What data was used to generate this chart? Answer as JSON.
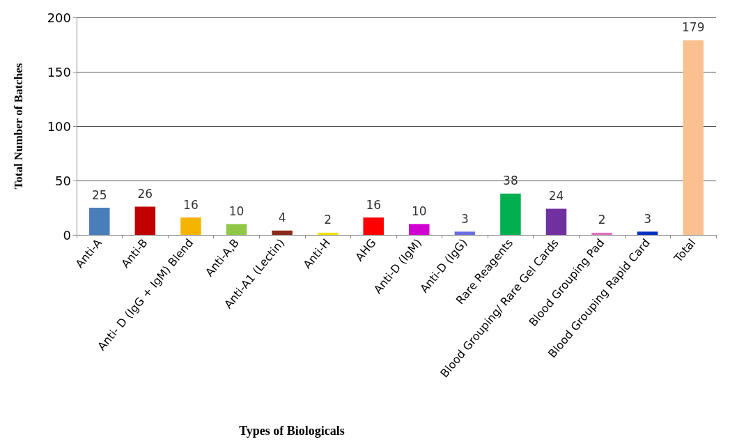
{
  "chart_data": {
    "type": "bar",
    "xlabel": "Types of Biologicals",
    "ylabel": "Total Number of Batches",
    "categories": [
      "Anti-A",
      "Anti-B",
      "Anti- D (IgG + IgM) Blend",
      "Anti-A,B",
      "Anti-A1 (Lectin)",
      "Anti-H",
      "AHG",
      "Anti-D (IgM)",
      "Anti-D (IgG)",
      "Rare Reagents",
      "Blood Grouping/ Rare Gel Cards",
      "Blood Grouping Pad",
      "Blood Grouping Rapid Card",
      "Total"
    ],
    "values": [
      25,
      26,
      16,
      10,
      4,
      2,
      16,
      10,
      3,
      38,
      24,
      2,
      3,
      179
    ],
    "colors": [
      "#4a7ebb",
      "#c00000",
      "#f5b400",
      "#8fc846",
      "#8b2a1a",
      "#f0e000",
      "#ff0000",
      "#d000d0",
      "#6b6be0",
      "#00b050",
      "#7030a0",
      "#e070c0",
      "#0030c0",
      "#fac090"
    ],
    "ylim": [
      0,
      200
    ],
    "yticks": [
      0,
      50,
      100,
      150,
      200
    ],
    "grid": "y",
    "data_labels": true
  }
}
